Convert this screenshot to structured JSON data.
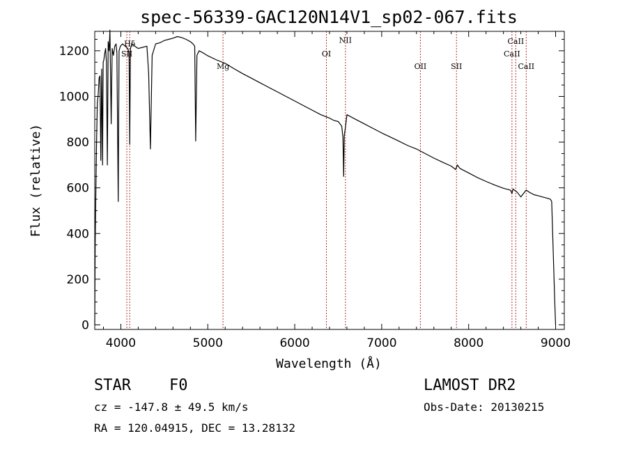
{
  "chart_data": {
    "type": "line",
    "title": "spec-56339-GAC120N14V1_sp02-067.fits",
    "xlabel": "Wavelength (Å)",
    "ylabel": "Flux (relative)",
    "xlim": [
      3700,
      9100
    ],
    "ylim": [
      -20,
      1285
    ],
    "x_ticks": [
      4000,
      5000,
      6000,
      7000,
      8000,
      9000
    ],
    "y_ticks": [
      0,
      200,
      400,
      600,
      800,
      1000,
      1200
    ],
    "grid": false,
    "series": [
      {
        "x": [
          3700,
          3705,
          3712,
          3720,
          3730,
          3740,
          3750,
          3760,
          3770,
          3780,
          3790,
          3797,
          3805,
          3815,
          3825,
          3835,
          3845,
          3855,
          3865,
          3875,
          3889,
          3900,
          3915,
          3930,
          3945,
          3955,
          3970,
          3980,
          3995,
          4020,
          4050,
          4080,
          4095,
          4102,
          4110,
          4130,
          4160,
          4200,
          4250,
          4300,
          4320,
          4340,
          4360,
          4400,
          4450,
          4500,
          4550,
          4600,
          4650,
          4700,
          4750,
          4800,
          4830,
          4850,
          4861,
          4875,
          4900,
          4950,
          5000,
          5100,
          5200,
          5300,
          5400,
          5500,
          5600,
          5700,
          5800,
          5900,
          6000,
          6100,
          6200,
          6300,
          6400,
          6450,
          6500,
          6540,
          6555,
          6563,
          6570,
          6585,
          6600,
          6700,
          6800,
          6900,
          7000,
          7100,
          7200,
          7300,
          7400,
          7500,
          7600,
          7700,
          7800,
          7850,
          7870,
          7900,
          8000,
          8100,
          8200,
          8300,
          8400,
          8480,
          8498,
          8510,
          8542,
          8560,
          8600,
          8662,
          8700,
          8750,
          8800,
          8850,
          8900,
          8940,
          8955,
          8970,
          8990,
          9000
        ],
        "y": [
          0,
          350,
          560,
          780,
          970,
          1010,
          1080,
          1090,
          720,
          1120,
          700,
          1150,
          1160,
          1190,
          1210,
          1150,
          700,
          1240,
          1200,
          1290,
          880,
          1210,
          1180,
          1220,
          1230,
          1190,
          540,
          1200,
          1220,
          1230,
          1220,
          1210,
          1190,
          790,
          1210,
          1230,
          1220,
          1210,
          1215,
          1220,
          1100,
          770,
          1180,
          1230,
          1235,
          1245,
          1250,
          1255,
          1262,
          1258,
          1250,
          1240,
          1230,
          1220,
          805,
          1180,
          1200,
          1190,
          1178,
          1160,
          1145,
          1122,
          1100,
          1080,
          1060,
          1040,
          1020,
          1000,
          980,
          960,
          940,
          920,
          905,
          895,
          890,
          870,
          820,
          650,
          830,
          870,
          920,
          900,
          880,
          860,
          840,
          822,
          804,
          785,
          770,
          750,
          730,
          712,
          695,
          680,
          700,
          685,
          665,
          645,
          628,
          612,
          598,
          590,
          575,
          595,
          585,
          580,
          560,
          590,
          580,
          570,
          565,
          560,
          555,
          550,
          540,
          350,
          100,
          0
        ]
      }
    ],
    "reference_lines": [
      {
        "x": 4069,
        "label": "SII",
        "label_y": 1175
      },
      {
        "x": 4102,
        "label": "Hδ",
        "label_y": 1220
      },
      {
        "x": 5175,
        "label": "Mg",
        "label_y": 1120
      },
      {
        "x": 6364,
        "label": "OI",
        "label_y": 1175
      },
      {
        "x": 6583,
        "label": "NII",
        "label_y": 1235
      },
      {
        "x": 7445,
        "label": "OII",
        "label_y": 1120
      },
      {
        "x": 7860,
        "label": "SII",
        "label_y": 1120
      },
      {
        "x": 8498,
        "label": "CaII",
        "label_y": 1175
      },
      {
        "x": 8542,
        "label": "CaII",
        "label_y": 1230
      },
      {
        "x": 8662,
        "label": "CaII",
        "label_y": 1120
      }
    ]
  },
  "info": {
    "object_class": "STAR",
    "subclass": "F0",
    "survey": "LAMOST DR2",
    "cz": "cz = -147.8 ± 49.5 km/s",
    "obs_date": "Obs-Date: 20130215",
    "coords": "RA = 120.04915, DEC =  13.28132"
  },
  "colors": {
    "spectrum": "#000000",
    "reference_line": "#b03030"
  }
}
